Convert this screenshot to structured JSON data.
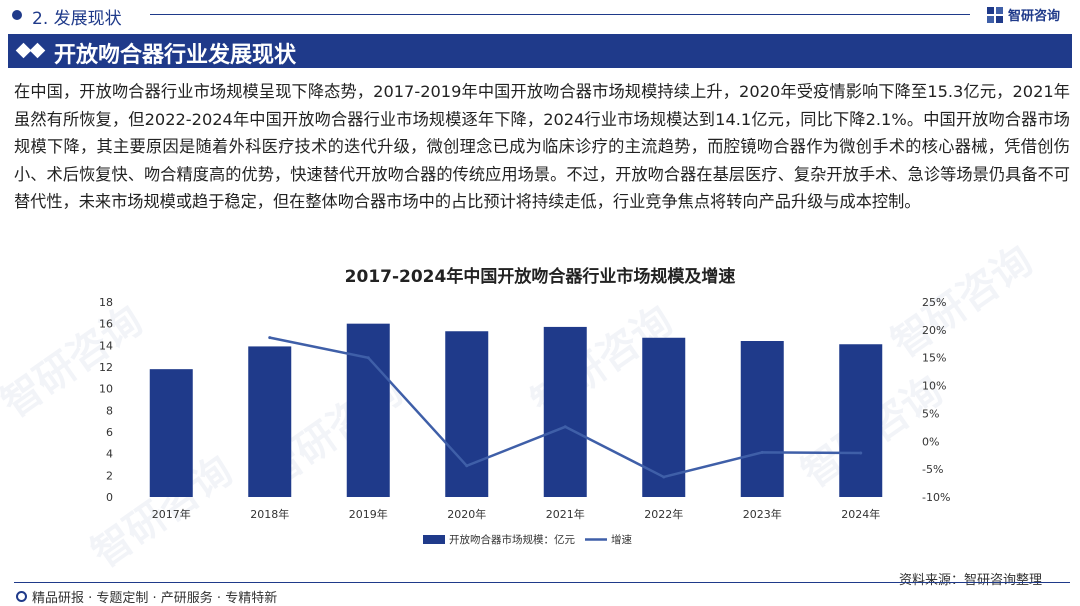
{
  "header": {
    "section_title": "2. 发展现状",
    "logo_text": "智研咨询",
    "banner_title": "开放吻合器行业发展现状"
  },
  "body": {
    "paragraph": "在中国，开放吻合器行业市场规模呈现下降态势，2017-2019年中国开放吻合器市场规模持续上升，2020年受疫情影响下降至15.3亿元，2021年虽然有所恢复，但2022-2024年中国开放吻合器行业市场规模逐年下降，2024行业市场规模达到14.1亿元，同比下降2.1%。中国开放吻合器市场规模下降，其主要原因是随着外科医疗技术的迭代升级，微创理念已成为临床诊疗的主流趋势，而腔镜吻合器作为微创手术的核心器械，凭借创伤小、术后恢复快、吻合精度高的优势，快速替代开放吻合器的传统应用场景。不过，开放吻合器在基层医疗、复杂开放手术、急诊等场景仍具备不可替代性，未来市场规模或趋于稳定，但在整体吻合器市场中的占比预计将持续走低，行业竞争焦点将转向产品升级与成本控制。"
  },
  "chart_data": {
    "type": "bar",
    "title": "2017-2024年中国开放吻合器行业市场规模及增速",
    "categories": [
      "2017年",
      "2018年",
      "2019年",
      "2020年",
      "2021年",
      "2022年",
      "2023年",
      "2024年"
    ],
    "series": [
      {
        "name": "开放吻合器市场规模：亿元",
        "type": "bar",
        "axis": "left",
        "color": "#1f3a8a",
        "values": [
          11.8,
          13.9,
          16.0,
          15.3,
          15.7,
          14.7,
          14.4,
          14.1
        ]
      },
      {
        "name": "增速",
        "type": "line",
        "axis": "right",
        "color": "#3f5fa8",
        "values": [
          null,
          18.6,
          15.0,
          -4.4,
          2.6,
          -6.4,
          -2.0,
          -2.1
        ]
      }
    ],
    "ylim_left": [
      0,
      18
    ],
    "yticks_left": [
      "0",
      "2",
      "4",
      "6",
      "8",
      "10",
      "12",
      "14",
      "16",
      "18"
    ],
    "ylim_right": [
      -10,
      25
    ],
    "yticks_right": [
      "-10%",
      "-5%",
      "0%",
      "5%",
      "10%",
      "15%",
      "20%",
      "25%"
    ],
    "legend_position": "bottom"
  },
  "footer": {
    "source": "资料来源：智研咨询整理",
    "tagline": "精品研报 · 专题定制 · 产研服务 · 专精特新"
  },
  "watermark_text": "智研咨询",
  "colors": {
    "brand": "#1f3a8a",
    "line": "#3f5fa8"
  }
}
